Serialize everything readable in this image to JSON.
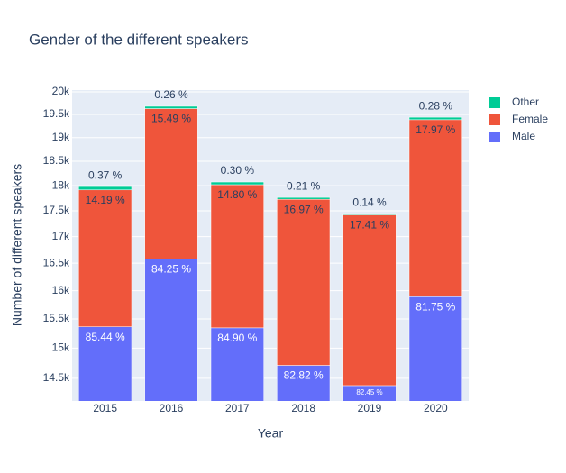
{
  "chart_data": {
    "type": "stacked-bar",
    "title": "Gender of the different speakers",
    "x_label": "Year",
    "y_label": "Number of different speakers",
    "categories": [
      "2015",
      "2016",
      "2017",
      "2018",
      "2019",
      "2020"
    ],
    "series": [
      {
        "name": "Male",
        "color": "#636efa",
        "values": [
          15364,
          16580,
          15346,
          14713,
          14383,
          15892
        ],
        "labels": [
          "85.44 %",
          "84.25 %",
          "84.90 %",
          "82.82 %",
          "82.45 %",
          "81.75 %"
        ]
      },
      {
        "name": "Female",
        "color": "#EF553B",
        "values": [
          2552,
          3048,
          2675,
          3015,
          3037,
          3493
        ],
        "labels": [
          "14.19 %",
          "15.49 %",
          "14.80 %",
          "16.97 %",
          "17.41 %",
          "17.97 %"
        ]
      },
      {
        "name": "Other",
        "color": "#00cc96",
        "values": [
          67,
          51,
          54,
          37,
          24,
          54
        ],
        "labels": [
          "0.37 %",
          "0.26 %",
          "0.30 %",
          "0.21 %",
          "0.14 %",
          "0.28 %"
        ]
      }
    ],
    "ylim": [
      14137,
      20040
    ],
    "log_y": true,
    "yticks": [
      {
        "value": 14500,
        "label": "14.5k"
      },
      {
        "value": 15000,
        "label": "15k"
      },
      {
        "value": 15500,
        "label": "15.5k"
      },
      {
        "value": 16000,
        "label": "16k"
      },
      {
        "value": 16500,
        "label": "16.5k"
      },
      {
        "value": 17000,
        "label": "17k"
      },
      {
        "value": 17500,
        "label": "17.5k"
      },
      {
        "value": 18000,
        "label": "18k"
      },
      {
        "value": 18500,
        "label": "18.5k"
      },
      {
        "value": 19000,
        "label": "19k"
      },
      {
        "value": 19500,
        "label": "19.5k"
      },
      {
        "value": 20000,
        "label": "20k"
      }
    ],
    "grid": true,
    "background": "#E5ECF6",
    "legend": "top-right"
  }
}
